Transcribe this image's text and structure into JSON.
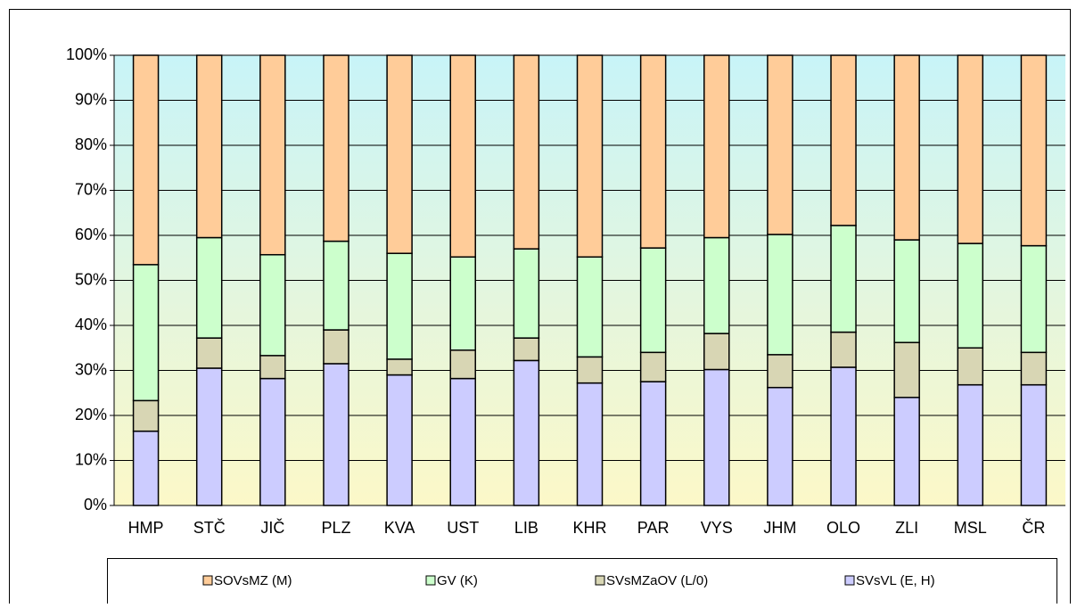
{
  "chart_data": {
    "type": "stacked_bar_percent",
    "categories": [
      "HMP",
      "STČ",
      "JIČ",
      "PLZ",
      "KVA",
      "UST",
      "LIB",
      "KHR",
      "PAR",
      "VYS",
      "JHM",
      "OLO",
      "ZLI",
      "MSL",
      "ČR"
    ],
    "series": [
      {
        "name": "SVsVL (E, H)",
        "color": "#ccccff",
        "values": [
          16.5,
          30.5,
          28.2,
          31.5,
          29,
          28.2,
          32.2,
          27.2,
          27.5,
          30.2,
          26.2,
          30.7,
          24,
          26.8,
          26.8
        ]
      },
      {
        "name": "SVsMZaOV (L/0)",
        "color": "#d8d6b4",
        "values": [
          6.8,
          6.7,
          5.1,
          7.5,
          3.5,
          6.3,
          5,
          5.8,
          6.5,
          8,
          7.3,
          7.8,
          12.2,
          8.2,
          7.2
        ]
      },
      {
        "name": "GV (K)",
        "color": "#ccffcc",
        "values": [
          30.2,
          22.3,
          22.4,
          19.7,
          23.5,
          20.7,
          19.8,
          22.2,
          23.2,
          21.3,
          26.7,
          23.7,
          22.8,
          23.2,
          23.7
        ]
      },
      {
        "name": "SOVsMZ (M)",
        "color": "#ffcc99",
        "values": [
          46.5,
          40.5,
          44.3,
          41.3,
          44,
          44.8,
          43,
          44.8,
          42.8,
          40.5,
          39.8,
          37.8,
          41,
          41.8,
          42.3
        ]
      }
    ],
    "ylim": [
      0,
      100
    ],
    "yticks": [
      {
        "value": 0,
        "label": "0%"
      },
      {
        "value": 10,
        "label": "10%"
      },
      {
        "value": 20,
        "label": "20%"
      },
      {
        "value": 30,
        "label": "30%"
      },
      {
        "value": 40,
        "label": "40%"
      },
      {
        "value": 50,
        "label": "50%"
      },
      {
        "value": 60,
        "label": "60%"
      },
      {
        "value": 70,
        "label": "70%"
      },
      {
        "value": 80,
        "label": "80%"
      },
      {
        "value": 90,
        "label": "90%"
      },
      {
        "value": 100,
        "label": "100%"
      }
    ],
    "grid": true
  }
}
